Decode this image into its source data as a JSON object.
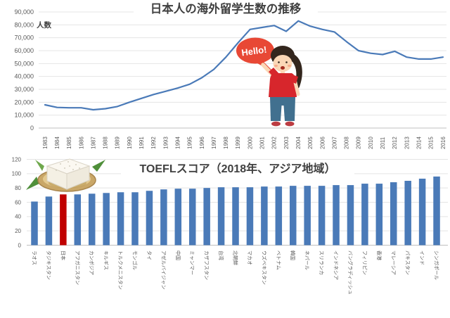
{
  "page": {
    "background": "#ffffff"
  },
  "annotations": {
    "speech_bubble_text": "Hello!"
  },
  "chart_data": [
    {
      "type": "line",
      "title": "日本人の海外留学生数の推移",
      "ylabel": "人数",
      "xlabel": "",
      "x": [
        1983,
        1984,
        1985,
        1986,
        1987,
        1988,
        1989,
        1990,
        1991,
        1992,
        1993,
        1994,
        1995,
        1996,
        1997,
        1998,
        1999,
        2000,
        2001,
        2002,
        2003,
        2004,
        2005,
        2006,
        2007,
        2008,
        2009,
        2010,
        2011,
        2012,
        2013,
        2014,
        2015,
        2016
      ],
      "values": [
        18000,
        16000,
        15700,
        15700,
        14200,
        15000,
        16700,
        20000,
        23000,
        26000,
        28500,
        31000,
        34000,
        39000,
        45500,
        55000,
        66000,
        76500,
        78000,
        79500,
        75000,
        83000,
        79000,
        76500,
        74500,
        67000,
        60000,
        58000,
        57000,
        59500,
        55000,
        53500,
        53500,
        55000
      ],
      "ylim": [
        0,
        90000
      ],
      "yticks": [
        0,
        10000,
        20000,
        30000,
        40000,
        50000,
        60000,
        70000,
        80000,
        90000
      ],
      "grid": true,
      "legend": "none",
      "line_color": "#4A7AB8",
      "grid_color": "#E4E4E4",
      "axis_color": "#BFBFBF",
      "tick_color": "#595959",
      "title_color": "#404040"
    },
    {
      "type": "bar",
      "title": "TOEFLスコア（2018年、アジア地域）",
      "xlabel": "",
      "ylabel": "",
      "categories": [
        "ラオス",
        "タジキスタン",
        "日本",
        "アフガニスタン",
        "カンボジア",
        "キルギス",
        "トルクメニスタン",
        "モンゴル",
        "タイ",
        "アゼルバイジャン",
        "中国",
        "ミャンマー",
        "カザフスタン",
        "台湾",
        "北朝鮮",
        "マカオ",
        "ウズベキスタン",
        "ベトナム",
        "韓国",
        "ネパール",
        "スリランカ",
        "インドネシア",
        "バングラディッシュ",
        "フィリピン",
        "香港",
        "マレーシア",
        "パキスタン",
        "インド",
        "シンガポール"
      ],
      "values": [
        61,
        68,
        71,
        71,
        72,
        73,
        74,
        74,
        76,
        78,
        79,
        79,
        80,
        81,
        81,
        81,
        82,
        82,
        83,
        83,
        83,
        84,
        84,
        86,
        86,
        88,
        90,
        93,
        96
      ],
      "ylim": [
        0,
        120
      ],
      "yticks": [
        0,
        20,
        40,
        60,
        80,
        100,
        120
      ],
      "grid": true,
      "legend": "none",
      "bar_color": "#4A7AB8",
      "highlight_category": "日本",
      "highlight_color": "#C00000",
      "grid_color": "#E4E4E4",
      "axis_color": "#BFBFBF",
      "tick_color": "#595959",
      "title_color": "#404040"
    }
  ]
}
